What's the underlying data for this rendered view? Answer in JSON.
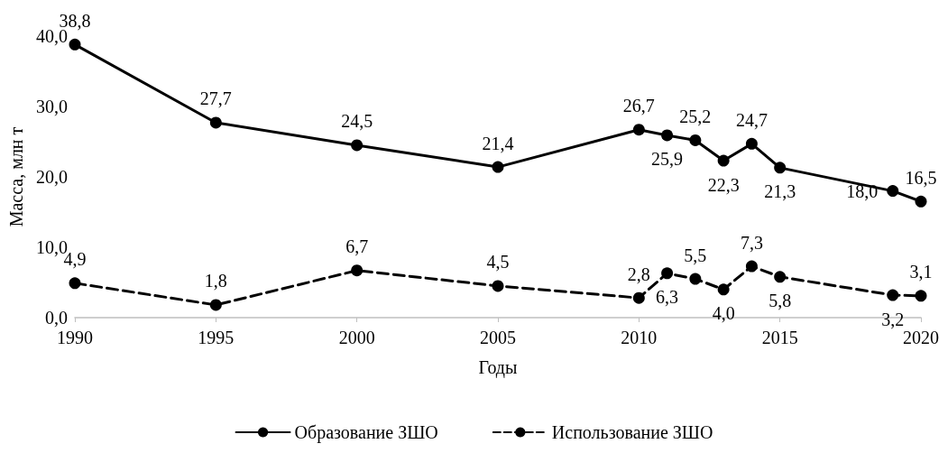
{
  "chart_data": {
    "type": "line",
    "xlabel": "Годы",
    "ylabel": "Масса, млн т",
    "x": [
      1990,
      1995,
      2000,
      2005,
      2010,
      2011,
      2012,
      2013,
      2014,
      2015,
      2019,
      2020
    ],
    "series": [
      {
        "name": "Образование ЗШО",
        "color": "#000000",
        "line_style": "solid",
        "values": [
          38.8,
          27.7,
          24.5,
          21.4,
          26.7,
          25.9,
          25.2,
          22.3,
          24.7,
          21.3,
          18.0,
          16.5
        ],
        "value_labels": [
          "38,8",
          "27,7",
          "24,5",
          "21,4",
          "26,7",
          "25,9",
          "25,2",
          "22,3",
          "24,7",
          "21,3",
          "18,0",
          "16,5"
        ]
      },
      {
        "name": "Использование ЗШО",
        "color": "#000000",
        "line_style": "dashed",
        "values": [
          4.9,
          1.8,
          6.7,
          4.5,
          2.8,
          6.3,
          5.5,
          4.0,
          7.3,
          5.8,
          3.2,
          3.1
        ],
        "value_labels": [
          "4,9",
          "1,8",
          "6,7",
          "4,5",
          "2,8",
          "6,3",
          "5,5",
          "4,0",
          "7,3",
          "5,8",
          "3,2",
          "3,1"
        ]
      }
    ],
    "xlim": [
      1990,
      2020
    ],
    "xticks": [
      1990,
      1995,
      2000,
      2005,
      2010,
      2015,
      2020
    ],
    "ylim": [
      0,
      40
    ],
    "yticks": [
      {
        "value": 0,
        "label": "0,0"
      },
      {
        "value": 10,
        "label": "10,0"
      },
      {
        "value": 20,
        "label": "20,0"
      },
      {
        "value": 30,
        "label": "30,0"
      },
      {
        "value": 40,
        "label": "40,0"
      }
    ],
    "grid": false,
    "legend": "bottom",
    "marker": "circle"
  }
}
